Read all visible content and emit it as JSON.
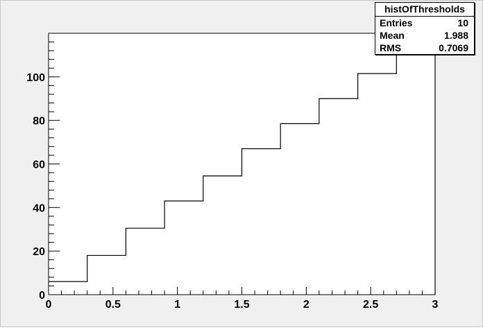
{
  "chart_data": {
    "type": "histogram",
    "title": "",
    "xlabel": "",
    "ylabel": "",
    "xlim": [
      0,
      3
    ],
    "ylim": [
      0,
      120
    ],
    "bin_edges": [
      0,
      0.3,
      0.6,
      0.9,
      1.2,
      1.5,
      1.8,
      2.1,
      2.4,
      2.7,
      3.0
    ],
    "values": [
      6,
      18,
      30.5,
      43,
      54.5,
      67,
      78.5,
      90,
      101.5,
      118.5
    ],
    "x_ticks": [
      0,
      0.5,
      1,
      1.5,
      2,
      2.5,
      3
    ],
    "x_tick_labels": [
      "0",
      "0.5",
      "1",
      "1.5",
      "2",
      "2.5",
      "3"
    ],
    "y_ticks": [
      0,
      20,
      40,
      60,
      80,
      100
    ],
    "y_tick_labels": [
      "0",
      "20",
      "40",
      "60",
      "80",
      "100"
    ],
    "grid": false,
    "line_color": "#000000",
    "frame_background": "#ffffff",
    "canvas_background": "#f0f0f0"
  },
  "stats": {
    "name": "histOfThresholds",
    "entries_label": "Entries",
    "entries_value": "10",
    "mean_label": "Mean",
    "mean_value": "1.988",
    "rms_label": "RMS",
    "rms_value": "0.7069"
  }
}
